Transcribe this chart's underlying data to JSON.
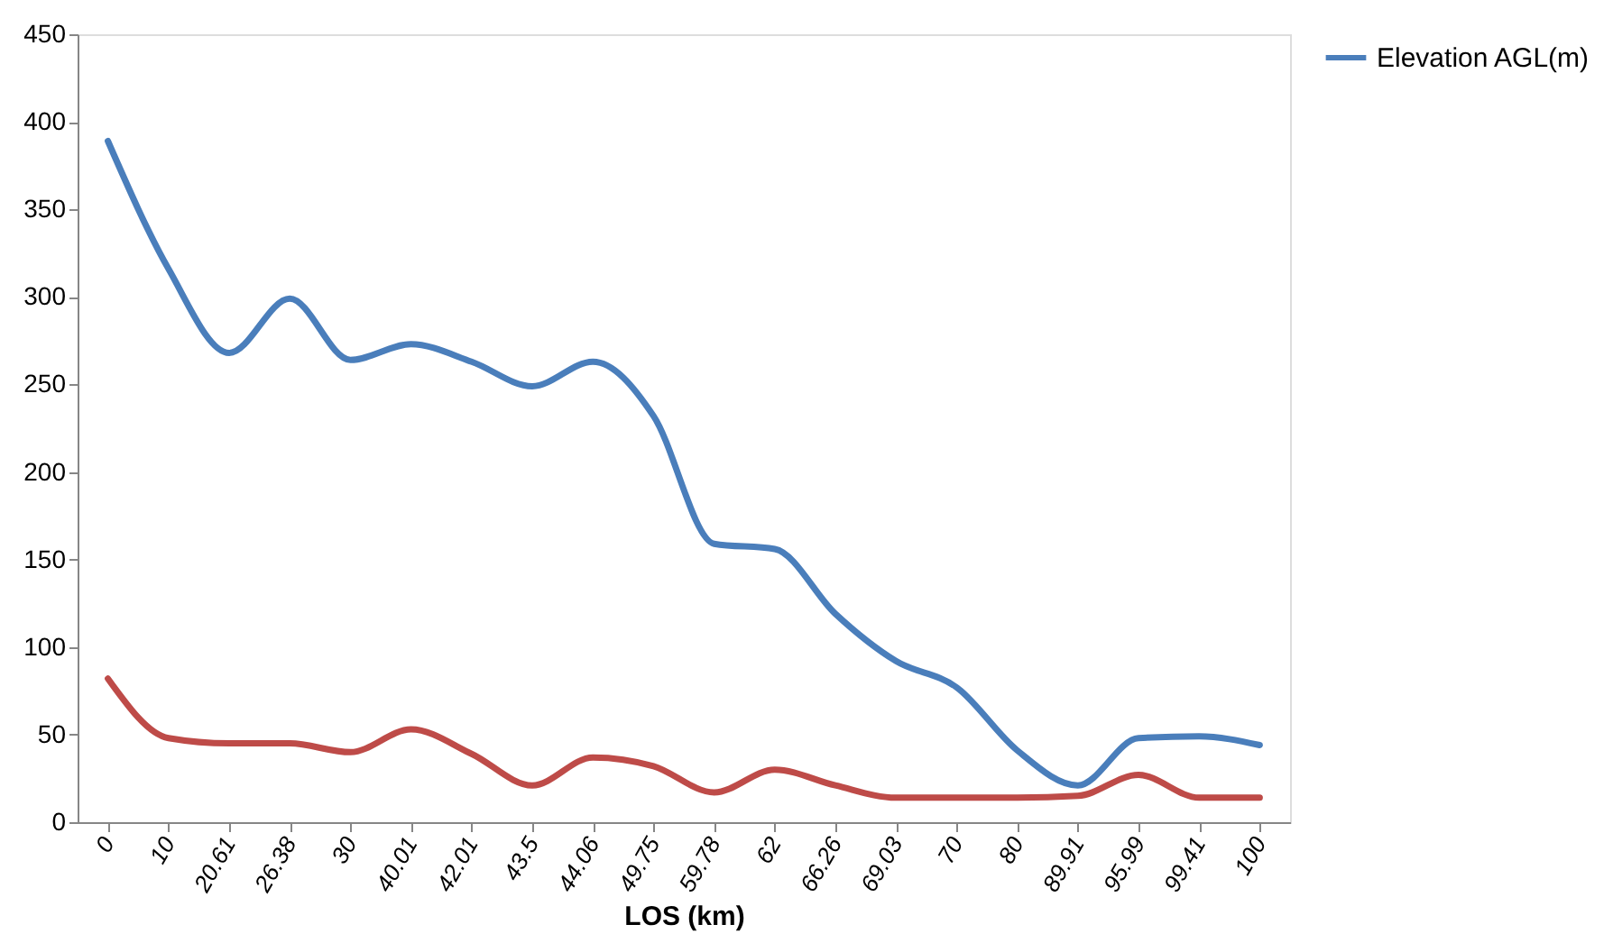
{
  "chart_data": {
    "type": "line",
    "xlabel": "LOS (km)",
    "categories": [
      "0",
      "10",
      "20.61",
      "26.38",
      "30",
      "40.01",
      "42.01",
      "43.5",
      "44.06",
      "49.75",
      "59.78",
      "62",
      "66.26",
      "69.03",
      "70",
      "80",
      "89.91",
      "95.99",
      "99.41",
      "100"
    ],
    "series": [
      {
        "name": "Elevation AGL(m)",
        "color": "#4a7ebb",
        "values": [
          389,
          316,
          268,
          299,
          264,
          273,
          263,
          249,
          263,
          232,
          159,
          156,
          119,
          92,
          77,
          41,
          21,
          48,
          49,
          44
        ]
      },
      {
        "color": "#be4b48",
        "values": [
          82,
          48,
          45,
          45,
          40,
          53,
          39,
          21,
          37,
          32,
          17,
          30,
          21,
          14,
          14,
          14,
          15,
          27,
          14,
          14
        ]
      }
    ],
    "ylim": [
      0,
      450
    ],
    "yticks": [
      0,
      50,
      100,
      150,
      200,
      250,
      300,
      350,
      400,
      450
    ],
    "grid": false,
    "legend": "right",
    "marker": "none",
    "line_style": "solid"
  }
}
